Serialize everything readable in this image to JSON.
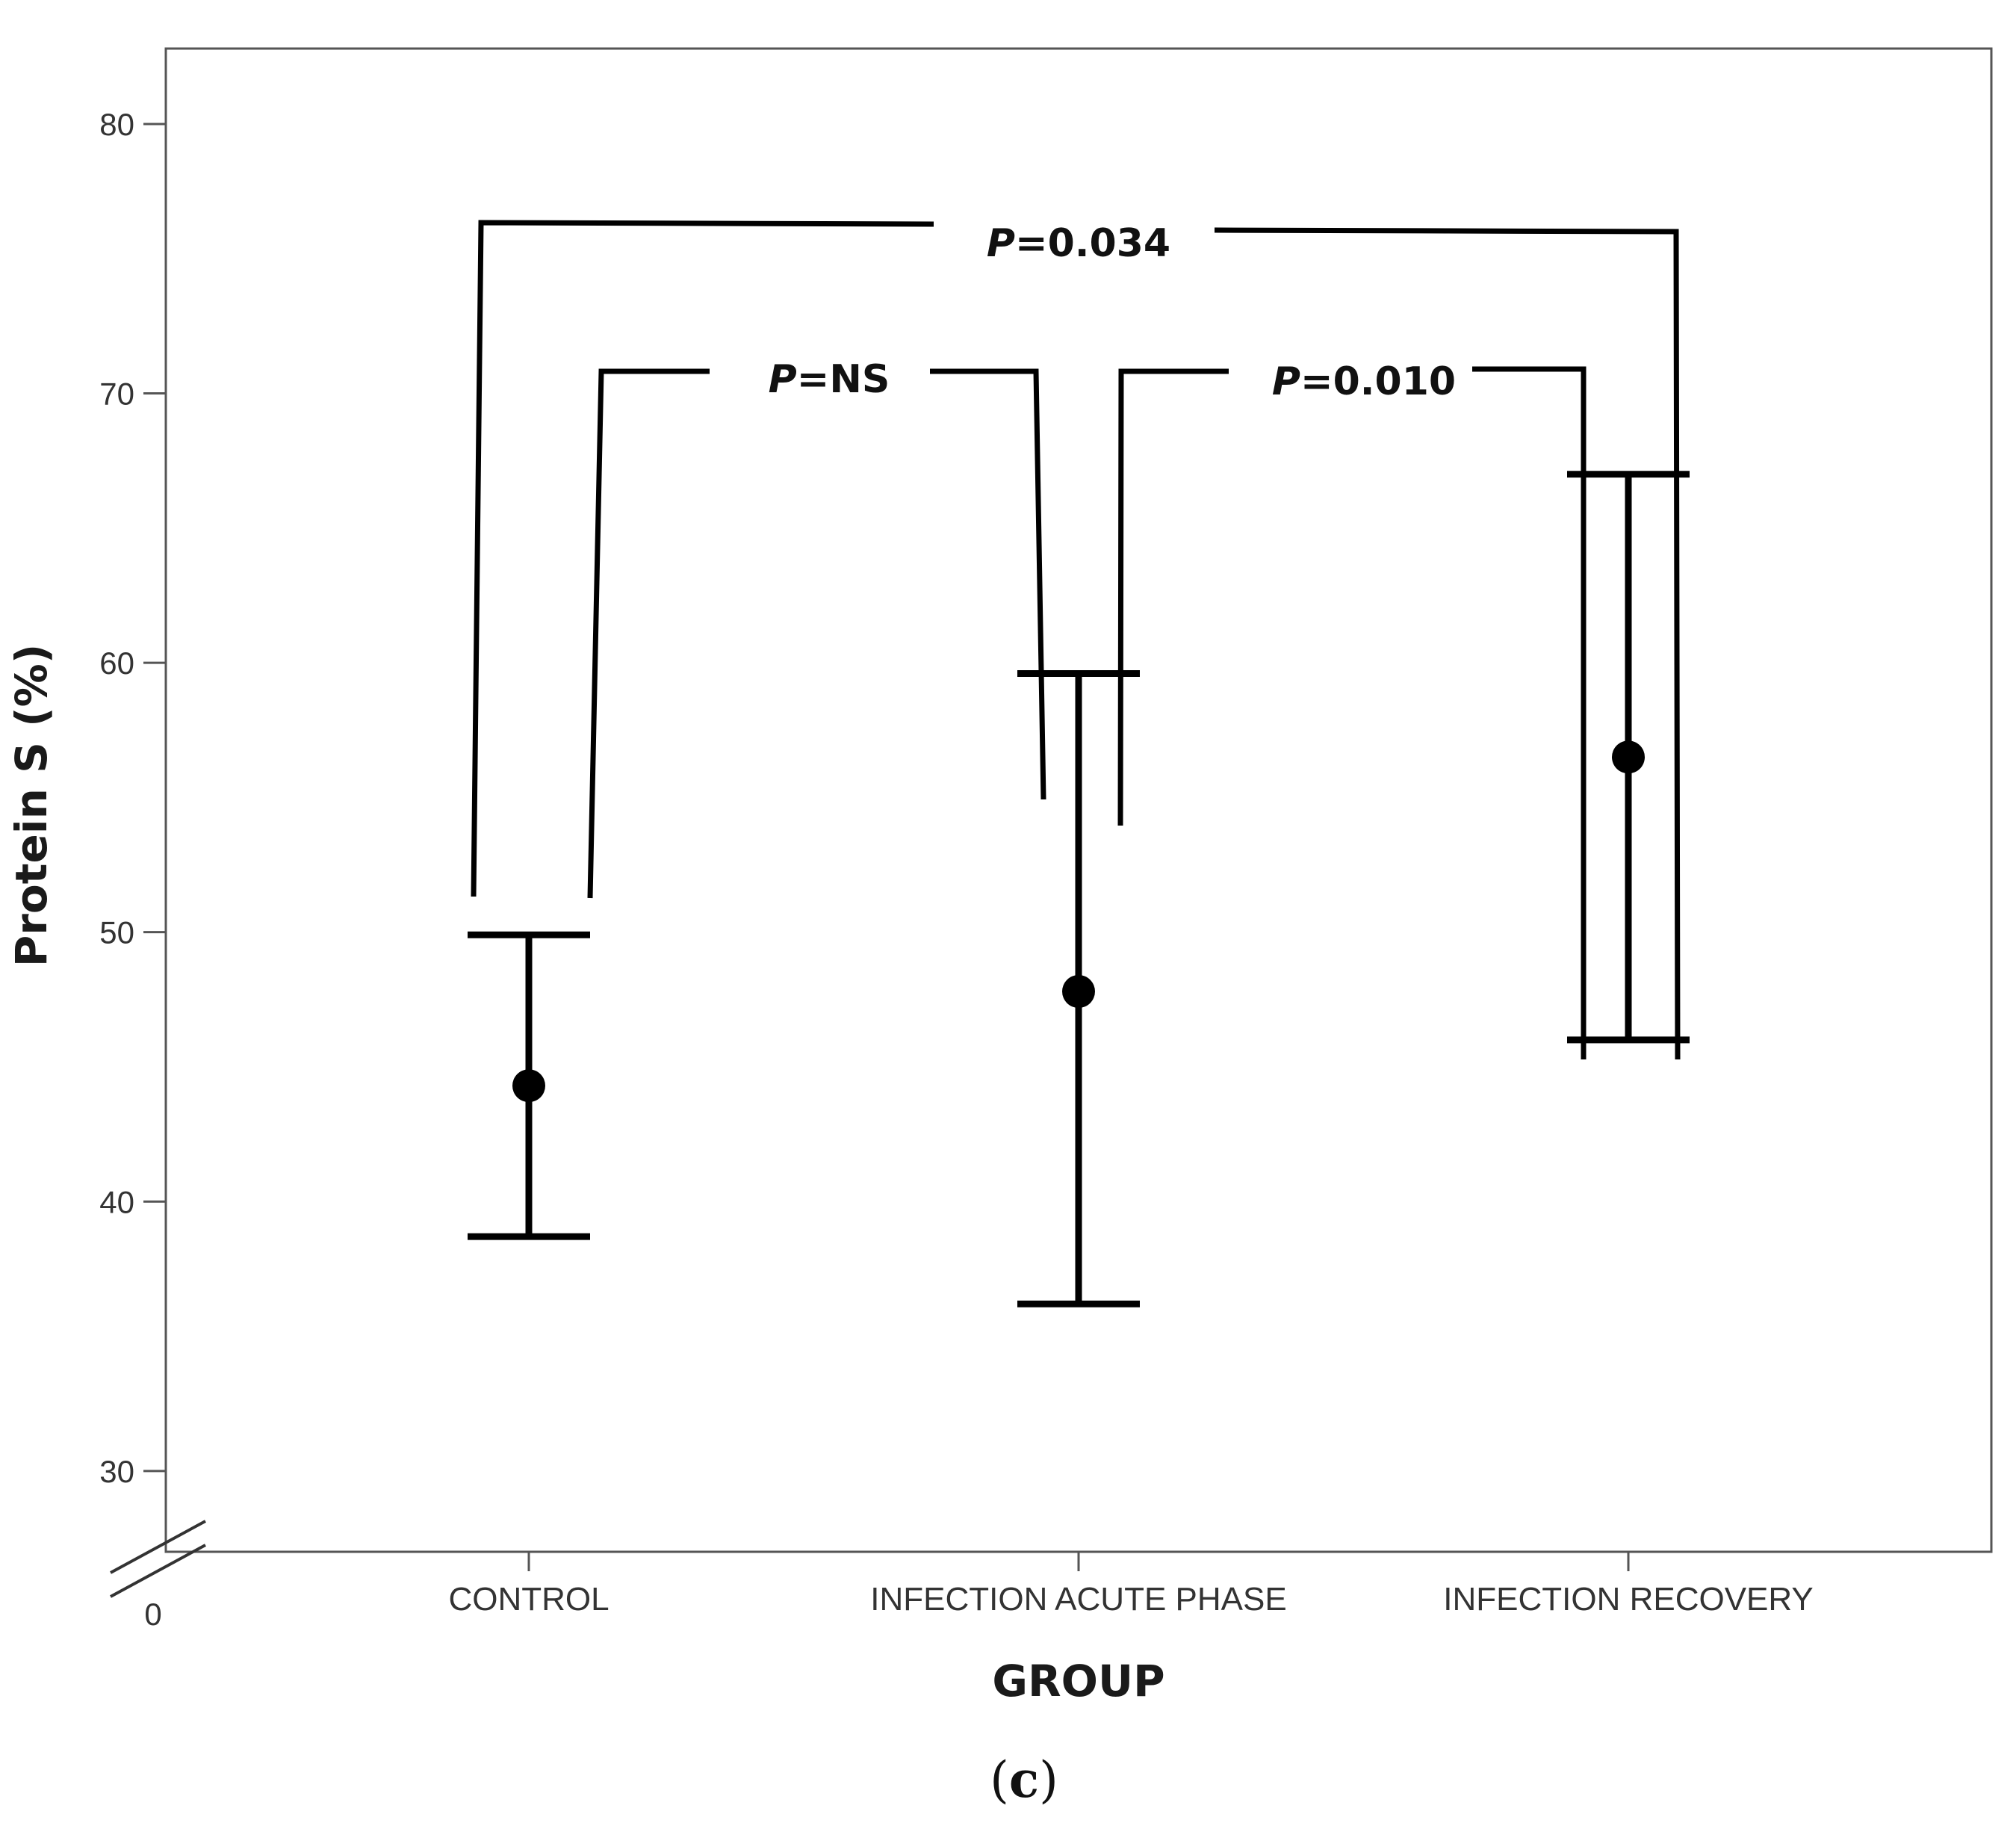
{
  "chart_data": {
    "type": "errorbar",
    "xlabel": "GROUP",
    "ylabel": "Protein S (%)",
    "categories": [
      "CONTROL",
      "INFECTION ACUTE PHASE",
      "INFECTION RECOVERY"
    ],
    "series": [
      {
        "means": [
          44.3,
          47.8,
          56.5
        ],
        "lower": [
          38.7,
          36.2,
          46.0
        ],
        "upper": [
          49.9,
          59.6,
          67.0
        ]
      }
    ],
    "ylim": [
      27,
      82.8
    ],
    "yticks": [
      30,
      40,
      50,
      60,
      70,
      80
    ],
    "axis_break_label": "0",
    "grid": false,
    "comparisons": [
      {
        "from": 0,
        "to": 2,
        "p_label": "P",
        "p_value": "=0.034"
      },
      {
        "from": 0,
        "to": 1,
        "p_label": "P",
        "p_value": "=NS"
      },
      {
        "from": 1,
        "to": 2,
        "p_label": "P",
        "p_value": "=0.010"
      }
    ],
    "panel_label": {
      "open": "(",
      "letter": "c",
      "close": ")"
    }
  }
}
